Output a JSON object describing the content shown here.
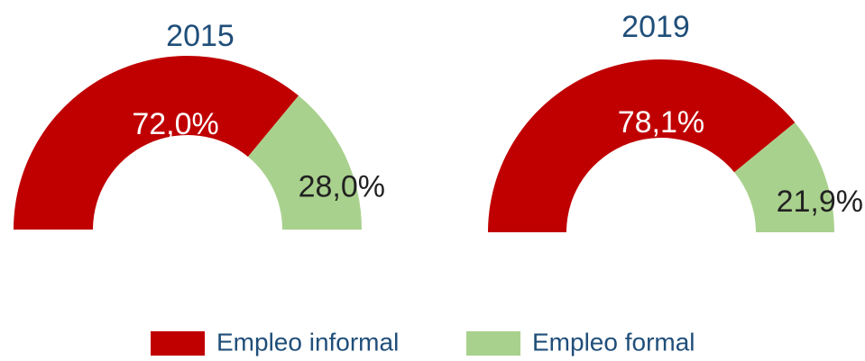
{
  "chart_data": [
    {
      "type": "half-donut",
      "title": "2015",
      "categories": [
        "Empleo informal",
        "Empleo formal"
      ],
      "values": [
        72.0,
        28.0
      ],
      "value_labels": [
        "72,0%",
        "28,0%"
      ],
      "colors": [
        "#c00000",
        "#a9d18e"
      ]
    },
    {
      "type": "half-donut",
      "title": "2019",
      "categories": [
        "Empleo informal",
        "Empleo formal"
      ],
      "values": [
        78.1,
        21.9
      ],
      "value_labels": [
        "78,1%",
        "21,9%"
      ],
      "colors": [
        "#c00000",
        "#a9d18e"
      ]
    }
  ]
}
